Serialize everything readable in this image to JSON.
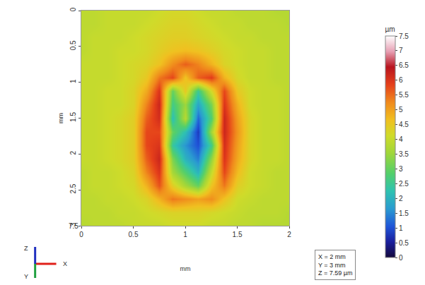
{
  "chart_data": {
    "type": "heatmap",
    "xlabel": "mm",
    "ylabel": "mm",
    "x": [
      0,
      0.125,
      0.25,
      0.375,
      0.5,
      0.625,
      0.75,
      0.875,
      1.0,
      1.125,
      1.25,
      1.375,
      1.5,
      1.625,
      1.75,
      1.875,
      2.0
    ],
    "y": [
      0,
      0.1875,
      0.375,
      0.5625,
      0.75,
      0.9375,
      1.125,
      1.3125,
      1.5,
      1.6875,
      1.875,
      2.0625,
      2.25,
      2.4375,
      2.625,
      2.8125,
      3.0
    ],
    "z": [
      [
        3.9,
        3.9,
        4.0,
        4.0,
        4.0,
        4.0,
        4.1,
        4.2,
        4.2,
        4.1,
        4.0,
        4.0,
        3.9,
        3.9,
        3.9,
        3.8,
        3.8
      ],
      [
        3.9,
        3.9,
        4.0,
        4.0,
        4.0,
        4.1,
        4.2,
        4.3,
        4.3,
        4.2,
        4.1,
        4.0,
        4.0,
        3.9,
        3.9,
        3.9,
        3.8
      ],
      [
        3.9,
        4.0,
        4.0,
        4.0,
        4.1,
        4.2,
        4.3,
        4.4,
        4.4,
        4.3,
        4.2,
        4.1,
        4.0,
        4.0,
        3.9,
        3.9,
        3.9
      ],
      [
        3.9,
        4.0,
        4.0,
        4.1,
        4.1,
        4.2,
        4.4,
        4.6,
        4.7,
        4.6,
        4.4,
        4.2,
        4.1,
        4.0,
        4.0,
        3.9,
        3.9
      ],
      [
        4.0,
        4.0,
        4.0,
        4.1,
        4.2,
        4.3,
        4.6,
        5.2,
        5.6,
        5.3,
        4.8,
        4.3,
        4.1,
        4.0,
        4.0,
        3.9,
        3.9
      ],
      [
        4.0,
        4.0,
        4.0,
        4.1,
        4.2,
        4.5,
        5.4,
        5.8,
        4.6,
        5.6,
        5.9,
        4.8,
        4.2,
        4.0,
        4.0,
        3.9,
        3.9
      ],
      [
        4.0,
        4.0,
        4.1,
        4.1,
        4.3,
        4.9,
        6.0,
        3.0,
        4.5,
        2.5,
        4.2,
        5.8,
        4.5,
        4.1,
        4.0,
        4.0,
        3.9
      ],
      [
        4.0,
        4.0,
        4.1,
        4.1,
        4.3,
        5.3,
        6.2,
        2.6,
        3.5,
        1.8,
        3.2,
        6.0,
        4.8,
        4.1,
        4.0,
        4.0,
        3.9
      ],
      [
        4.0,
        4.0,
        4.1,
        4.2,
        4.4,
        5.6,
        6.1,
        2.2,
        3.8,
        1.2,
        2.8,
        6.2,
        5.0,
        4.2,
        4.0,
        4.0,
        3.9
      ],
      [
        4.0,
        4.0,
        4.1,
        4.2,
        4.4,
        5.8,
        5.8,
        3.0,
        2.2,
        0.8,
        3.6,
        6.2,
        5.1,
        4.2,
        4.0,
        4.0,
        3.9
      ],
      [
        4.0,
        4.0,
        4.1,
        4.2,
        4.4,
        5.8,
        6.0,
        2.4,
        1.6,
        1.0,
        2.6,
        6.1,
        5.0,
        4.2,
        4.0,
        4.0,
        3.9
      ],
      [
        4.0,
        4.0,
        4.1,
        4.2,
        4.4,
        5.6,
        6.2,
        3.2,
        2.0,
        1.4,
        3.4,
        6.0,
        4.9,
        4.2,
        4.0,
        4.0,
        3.9
      ],
      [
        3.9,
        4.0,
        4.0,
        4.1,
        4.3,
        5.3,
        6.0,
        3.6,
        2.8,
        2.0,
        4.0,
        5.8,
        4.7,
        4.1,
        4.0,
        3.9,
        3.9
      ],
      [
        3.9,
        4.0,
        4.0,
        4.1,
        4.2,
        4.8,
        5.7,
        4.4,
        3.6,
        3.0,
        4.6,
        5.4,
        4.4,
        4.1,
        4.0,
        3.9,
        3.9
      ],
      [
        3.9,
        3.9,
        4.0,
        4.0,
        4.1,
        4.3,
        4.8,
        5.4,
        5.2,
        5.0,
        5.2,
        4.6,
        4.1,
        4.0,
        3.9,
        3.9,
        3.9
      ],
      [
        3.9,
        3.9,
        3.9,
        4.0,
        4.0,
        4.1,
        4.2,
        4.3,
        4.3,
        4.3,
        4.2,
        4.1,
        4.0,
        3.9,
        3.9,
        3.9,
        3.8
      ],
      [
        3.8,
        3.9,
        3.9,
        3.9,
        4.0,
        4.0,
        4.0,
        4.1,
        4.1,
        4.1,
        4.0,
        4.0,
        3.9,
        3.9,
        3.8,
        3.8,
        3.8
      ]
    ],
    "xlim": [
      0,
      2
    ],
    "ylim": [
      3,
      0
    ],
    "xticks": [
      0,
      0.5,
      1,
      1.5,
      2
    ],
    "yticks": [
      0,
      0.5,
      1,
      1.5,
      2,
      2.5,
      3
    ],
    "z_axis_ticks": [
      7.5
    ],
    "colorbar": {
      "title": "µm",
      "range": [
        0,
        7.5
      ],
      "ticks": [
        0,
        0.5,
        1,
        1.5,
        2,
        2.5,
        3,
        3.5,
        4,
        4.5,
        5,
        5.5,
        6,
        6.5,
        7,
        7.5
      ]
    },
    "info_box": [
      "X = 2 mm",
      "Y = 3 mm",
      "Z = 7.59 µm"
    ],
    "axis_triad": {
      "x": "X",
      "y": "Y",
      "z": "Z"
    },
    "grid": false
  }
}
